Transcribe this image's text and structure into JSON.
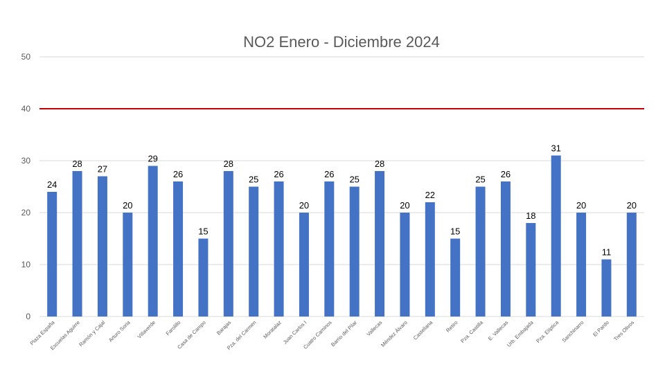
{
  "chart_data": {
    "type": "bar",
    "title": "NO2 Enero - Diciembre 2024",
    "xlabel": "",
    "ylabel": "",
    "ylim": [
      0,
      50
    ],
    "yticks": [
      0,
      10,
      20,
      30,
      40,
      50
    ],
    "grid": true,
    "bar_color": "#4472c4",
    "reference_line": {
      "value": 40,
      "color": "#c00000"
    },
    "categories": [
      "Plaza España",
      "Escuelas Aguirre",
      "Ramón y Cajal",
      "Arturo Soria",
      "Villaverde",
      "Farolillo",
      "Casa de Campo",
      "Barajas",
      "Pza. del Carmen",
      "Moratalaz",
      "Juan Carlos I",
      "Cuatro Caminos",
      "Barrio del Pilar",
      "Vallecas",
      "Méndez Álvaro",
      "Castellana",
      "Retiro",
      "Pza. Castilla",
      "E. Vallecas",
      "Urb. Embajada",
      "Pza. Elíptica",
      "Sanchinarro",
      "El Pardo",
      "Tres Olivos"
    ],
    "values": [
      24,
      28,
      27,
      20,
      29,
      26,
      15,
      28,
      25,
      26,
      20,
      26,
      25,
      28,
      20,
      22,
      15,
      25,
      26,
      18,
      31,
      20,
      11,
      20
    ]
  }
}
